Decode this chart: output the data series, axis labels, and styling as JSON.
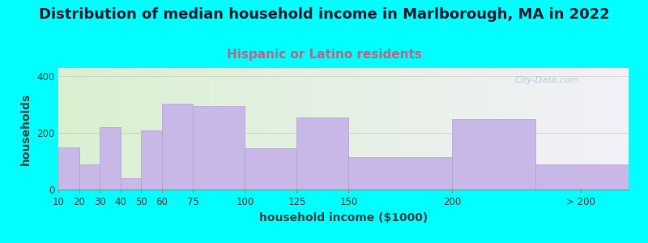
{
  "title": "Distribution of median household income in Marlborough, MA in 2022",
  "subtitle": "Hispanic or Latino residents",
  "xlabel": "household income ($1000)",
  "ylabel": "households",
  "background_outer": "#00FFFF",
  "bar_color": "#C8B8E8",
  "bar_edge_color": "#B0A0D0",
  "plot_bg_gradient_left": "#D8F0D0",
  "plot_bg_gradient_right": "#F2F0F8",
  "categories": [
    "10",
    "20",
    "30",
    "40",
    "50",
    "60",
    "75",
    "100",
    "125",
    "150",
    "200",
    "> 200"
  ],
  "values": [
    150,
    90,
    220,
    40,
    210,
    305,
    295,
    145,
    255,
    115,
    250,
    90
  ],
  "ylim": [
    0,
    430
  ],
  "yticks": [
    0,
    200,
    400
  ],
  "watermark": "City-Data.com",
  "title_fontsize": 13,
  "subtitle_fontsize": 11,
  "subtitle_color": "#BB6688",
  "axis_label_fontsize": 10,
  "tick_fontsize": 8.5
}
